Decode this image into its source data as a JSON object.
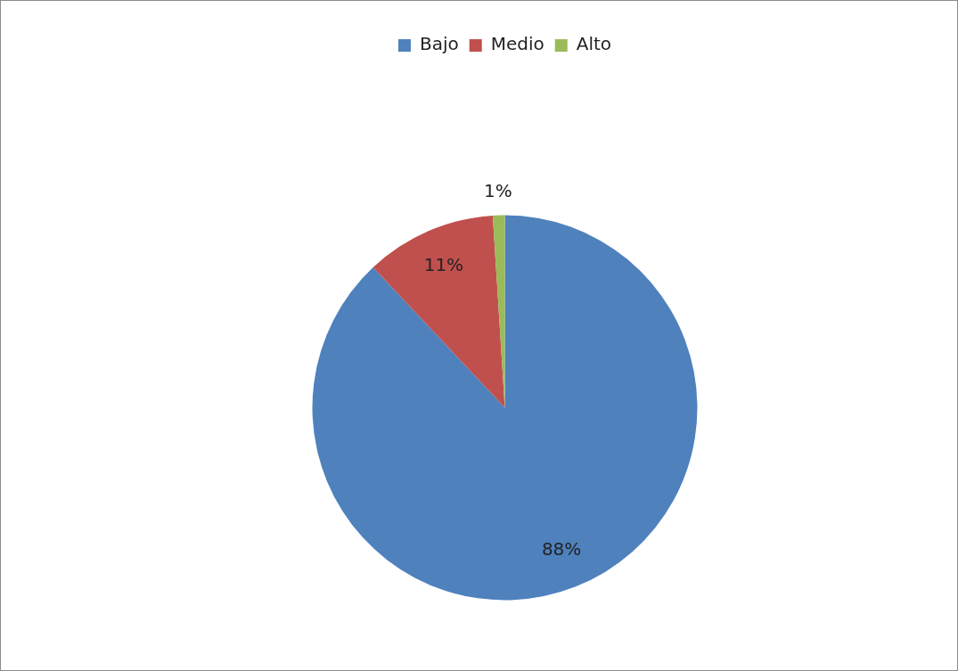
{
  "chart_data": {
    "type": "pie",
    "categories": [
      "Bajo",
      "Medio",
      "Alto"
    ],
    "values": [
      88,
      11,
      1
    ],
    "colors": [
      "#4f81bd",
      "#c0504d",
      "#9bbb59"
    ],
    "value_labels": [
      "88%",
      "11%",
      "1%"
    ],
    "legend": "top"
  }
}
